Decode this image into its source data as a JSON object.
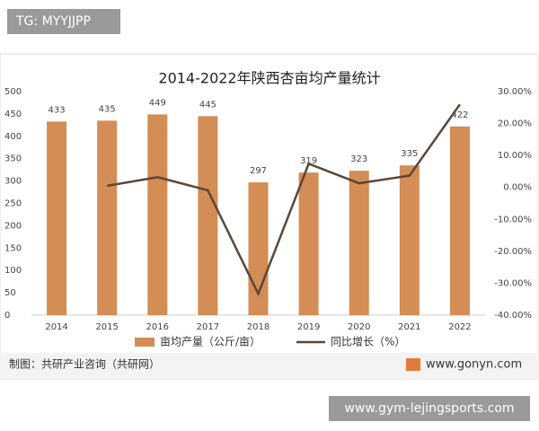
{
  "watermark": "TG: MYYJJPP",
  "chart_data": {
    "type": "bar_line",
    "title": "2014-2022年陕西杏亩均产量统计",
    "categories": [
      "2014",
      "2015",
      "2016",
      "2017",
      "2018",
      "2019",
      "2020",
      "2021",
      "2022"
    ],
    "series": [
      {
        "name": "亩均产量（公斤/亩）",
        "type": "bar",
        "color": "#d38d55",
        "values": [
          433,
          435,
          449,
          445,
          297,
          319,
          323,
          335,
          422
        ]
      },
      {
        "name": "同比增长（%）",
        "type": "line",
        "axis": "y2",
        "color": "#5b4737",
        "values": [
          null,
          0.5,
          3.2,
          -0.9,
          -33.3,
          7.4,
          1.3,
          3.7,
          26.0
        ]
      }
    ],
    "ylim": [
      0,
      500
    ],
    "yticks": [
      0,
      50,
      100,
      150,
      200,
      250,
      300,
      350,
      400,
      450,
      500
    ],
    "y2lim": [
      -40,
      30
    ],
    "y2ticks": [
      {
        "value": -40,
        "label": "-40.00%"
      },
      {
        "value": -30,
        "label": "-30.00%"
      },
      {
        "value": -20,
        "label": "-20.00%"
      },
      {
        "value": -10,
        "label": "-10.00%"
      },
      {
        "value": 0,
        "label": "0.00%"
      },
      {
        "value": 10,
        "label": "10.00%"
      },
      {
        "value": 20,
        "label": "20.00%"
      },
      {
        "value": 30,
        "label": "30.00%"
      }
    ],
    "legend": "bottom",
    "grid": false
  },
  "source": "制图：共研产业咨询（共研网）",
  "logo": "www.gonyn.com",
  "footer": "www.gym-lejingsports.com"
}
